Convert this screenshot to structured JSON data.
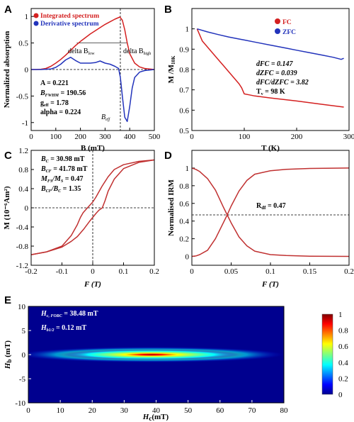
{
  "chart_data": [
    {
      "panel": "A",
      "type": "line",
      "xlabel": "B (mT)",
      "ylabel": "Normalized absorption",
      "xlim": [
        0,
        500
      ],
      "ylim": [
        -1.15,
        1.15
      ],
      "xticks": [
        0,
        100,
        200,
        300,
        400,
        500
      ],
      "yticks": [
        -1,
        -0.5,
        0,
        0.5,
        1
      ],
      "ytick_labels": [
        "-1",
        "-0.5",
        "0",
        "0.5",
        "1"
      ],
      "legend": [
        "Integrated spectrum",
        "Derivative spectrum"
      ],
      "legend_colors": [
        "#d42020",
        "#2233bb"
      ],
      "vline": {
        "x": 362,
        "label": "B_eff"
      },
      "hline": {
        "y": 0
      },
      "delta_low_label": "delta B_low",
      "delta_high_label": "delta B_high",
      "annotations": [
        "A = 0.221",
        "B_FWHM = 190.56",
        "g_eff = 1.78",
        "alpha = 0.224"
      ],
      "series": [
        {
          "name": "Integrated spectrum",
          "color": "#d42020",
          "x": [
            0,
            20,
            40,
            60,
            80,
            100,
            120,
            140,
            160,
            180,
            200,
            220,
            240,
            260,
            280,
            300,
            320,
            340,
            360,
            370,
            380,
            390,
            400,
            420,
            440,
            460,
            480,
            500
          ],
          "y": [
            0,
            0,
            0.005,
            0.02,
            0.06,
            0.12,
            0.19,
            0.27,
            0.36,
            0.45,
            0.53,
            0.6,
            0.67,
            0.73,
            0.79,
            0.85,
            0.9,
            0.95,
            0.99,
            0.93,
            0.75,
            0.5,
            0.3,
            0.12,
            0.05,
            0.02,
            0.01,
            0
          ]
        },
        {
          "name": "Derivative spectrum",
          "color": "#2233bb",
          "x": [
            0,
            40,
            80,
            100,
            120,
            140,
            160,
            180,
            200,
            220,
            240,
            260,
            280,
            300,
            320,
            340,
            355,
            362,
            370,
            380,
            390,
            400,
            410,
            420,
            440,
            460,
            480,
            500
          ],
          "y": [
            0,
            0,
            0.01,
            0.04,
            0.1,
            0.18,
            0.23,
            0.17,
            0.12,
            0.12,
            0.12,
            0.13,
            0.16,
            0.12,
            0.1,
            0.06,
            0.02,
            -0.15,
            -0.5,
            -0.9,
            -0.98,
            -0.7,
            -0.35,
            -0.15,
            -0.05,
            -0.02,
            -0.01,
            0
          ]
        }
      ]
    },
    {
      "panel": "B",
      "type": "line",
      "xlabel": "T (K)",
      "ylabel": "M /M_10K",
      "xlim": [
        0,
        300
      ],
      "ylim": [
        0.5,
        1.1
      ],
      "xticks": [
        0,
        100,
        200,
        300
      ],
      "yticks": [
        0.5,
        0.6,
        0.7,
        0.8,
        0.9,
        1
      ],
      "ytick_labels": [
        "0.5",
        "0.6",
        "0.7",
        "0.8",
        "0.9",
        "1"
      ],
      "legend": [
        "FC",
        "ZFC"
      ],
      "legend_colors": [
        "#d42020",
        "#2233bb"
      ],
      "annotations": [
        "dFC = 0.147",
        "dZFC = 0.039",
        "dFC/dZFC = 3.82",
        "T_v = 98 K"
      ],
      "series": [
        {
          "name": "FC",
          "color": "#d42020",
          "x": [
            10,
            15,
            20,
            30,
            40,
            50,
            60,
            70,
            80,
            90,
            95,
            100,
            110,
            120,
            150,
            200,
            250,
            290
          ],
          "y": [
            1,
            0.97,
            0.94,
            0.91,
            0.88,
            0.85,
            0.82,
            0.79,
            0.76,
            0.73,
            0.71,
            0.68,
            0.675,
            0.67,
            0.66,
            0.645,
            0.628,
            0.615
          ]
        },
        {
          "name": "ZFC",
          "color": "#2233bb",
          "x": [
            10,
            30,
            50,
            70,
            90,
            100,
            120,
            150,
            180,
            200,
            220,
            250,
            270,
            285,
            290
          ],
          "y": [
            1,
            0.985,
            0.972,
            0.96,
            0.95,
            0.945,
            0.935,
            0.92,
            0.905,
            0.895,
            0.885,
            0.87,
            0.86,
            0.85,
            0.855
          ]
        }
      ]
    },
    {
      "panel": "C",
      "type": "line",
      "xlabel": "F (T)",
      "ylabel": "M (10^-6 Am^2)",
      "xlim": [
        -0.2,
        0.2
      ],
      "ylim": [
        -1.2,
        1.2
      ],
      "xticks": [
        -0.2,
        -0.1,
        0,
        0.1,
        0.2
      ],
      "xtick_labels": [
        "-0.2",
        "-0.1",
        "0",
        "0.1",
        "0.2"
      ],
      "yticks": [
        -1.2,
        -0.8,
        -0.4,
        0,
        0.4,
        0.8,
        1.2
      ],
      "ytick_labels": [
        "-1.2",
        "-0.8",
        "-0.4",
        "0",
        "0.4",
        "0.8",
        "1.2"
      ],
      "annotations": [
        "B_C = 30.98 mT",
        "B_CF = 41.78 mT",
        "M_FS/M_S = 0.47",
        "B_CF/B_C = 1.35"
      ],
      "series": [
        {
          "name": "descending",
          "color": "#c03030",
          "x": [
            0.2,
            0.15,
            0.1,
            0.07,
            0.05,
            0.03,
            0.01,
            0,
            -0.01,
            -0.02,
            -0.031,
            -0.04,
            -0.05,
            -0.07,
            -0.1,
            -0.15,
            -0.2
          ],
          "y": [
            1,
            0.97,
            0.9,
            0.8,
            0.65,
            0.45,
            0.22,
            0.12,
            0.05,
            -0.02,
            -0.1,
            -0.2,
            -0.35,
            -0.58,
            -0.8,
            -0.92,
            -0.98
          ]
        },
        {
          "name": "ascending",
          "color": "#c03030",
          "x": [
            -0.2,
            -0.15,
            -0.1,
            -0.07,
            -0.05,
            -0.03,
            -0.01,
            0,
            0.01,
            0.02,
            0.031,
            0.04,
            0.05,
            0.07,
            0.1,
            0.15,
            0.2
          ],
          "y": [
            -0.98,
            -0.92,
            -0.82,
            -0.7,
            -0.6,
            -0.45,
            -0.28,
            -0.2,
            -0.12,
            -0.05,
            0,
            0.15,
            0.35,
            0.6,
            0.82,
            0.95,
            1
          ]
        }
      ]
    },
    {
      "panel": "D",
      "type": "line",
      "xlabel": "F (T)",
      "ylabel": "Normalised IRM",
      "xlim": [
        0,
        0.2
      ],
      "ylim": [
        -0.1,
        1.2
      ],
      "xticks": [
        0,
        0.05,
        0.1,
        0.15,
        0.2
      ],
      "xtick_labels": [
        "0",
        "0.05",
        "0.1",
        "0.15",
        "0.2"
      ],
      "yticks": [
        0,
        0.2,
        0.4,
        0.6,
        0.8,
        1
      ],
      "ytick_labels": [
        "0",
        "0.2",
        "0.4",
        "0.6",
        "0.8",
        "1"
      ],
      "hline": {
        "y": 0.47,
        "label": "R_df = 0.47"
      },
      "series": [
        {
          "name": "acquisition",
          "color": "#c03030",
          "x": [
            0,
            0.005,
            0.01,
            0.02,
            0.03,
            0.04,
            0.045,
            0.05,
            0.06,
            0.07,
            0.08,
            0.1,
            0.12,
            0.15,
            0.2
          ],
          "y": [
            0,
            0.005,
            0.02,
            0.07,
            0.2,
            0.38,
            0.47,
            0.57,
            0.74,
            0.86,
            0.93,
            0.97,
            0.985,
            0.995,
            1
          ]
        },
        {
          "name": "demagnetisation",
          "color": "#c03030",
          "x": [
            0,
            0.005,
            0.01,
            0.02,
            0.03,
            0.04,
            0.045,
            0.05,
            0.06,
            0.07,
            0.08,
            0.1,
            0.12,
            0.15,
            0.2
          ],
          "y": [
            1,
            0.985,
            0.96,
            0.88,
            0.75,
            0.56,
            0.47,
            0.38,
            0.22,
            0.12,
            0.06,
            0.02,
            0.01,
            0.003,
            0
          ]
        }
      ]
    },
    {
      "panel": "E",
      "type": "heatmap",
      "xlabel": "H_c (mT)",
      "ylabel": "H_b (mT)",
      "xlim": [
        0,
        80
      ],
      "ylim": [
        -10,
        10
      ],
      "xticks": [
        0,
        10,
        20,
        30,
        40,
        50,
        60,
        70,
        80
      ],
      "yticks": [
        -10,
        -5,
        0,
        5,
        10
      ],
      "colorbar_ticks": [
        0,
        0.2,
        0.4,
        0.6,
        0.8,
        1
      ],
      "colorbar_labels": [
        "0",
        "0.2",
        "0.4",
        "0.6",
        "0.8",
        "1"
      ],
      "annotations": [
        "H_c,FORC = 38.48 mT",
        "H_b1/2 = 0.12 mT"
      ],
      "peak": {
        "x": 38.48,
        "y": 0
      }
    }
  ],
  "labels": {
    "A": "A",
    "B": "B",
    "C": "C",
    "D": "D",
    "E": "E",
    "a_legend1": "Integrated spectrum",
    "a_legend2": "Derivative spectrum",
    "a_ann1": "A = 0.221",
    "a_ann2": "B",
    "a_ann2_sub": "FWHM",
    "a_ann2_val": " = 190.56",
    "a_ann3": "g",
    "a_ann3_sub": "eff",
    "a_ann3_val": " = 1.78",
    "a_ann4": "alpha = 0.224",
    "a_dlow": "delta B",
    "a_dlow_sub": "low",
    "a_dhigh": "delta B",
    "a_dhigh_sub": "high",
    "a_beff": "B",
    "a_beff_sub": "eff",
    "a_xlabel": "B (mT)",
    "a_ylabel": "Normalized absorption",
    "b_legend1": "FC",
    "b_legend2": "ZFC",
    "b_ann1": "dFC = 0.147",
    "b_ann2": "dZFC = 0.039",
    "b_ann3": "dFC/dZFC = 3.82",
    "b_ann4": "T",
    "b_ann4_sub": "v",
    "b_ann4_val": " = 98 K",
    "b_xlabel": "T (K)",
    "b_ylabel": "M /M",
    "b_ylabel_sub": "10K",
    "c_ann1": "B",
    "c_ann1_sub": "C",
    "c_ann1_val": " = 30.98 mT",
    "c_ann2": "B",
    "c_ann2_sub": "CF",
    "c_ann2_val": " = 41.78 mT",
    "c_ann3": "M",
    "c_ann3_sub": "FS",
    "c_ann3_mid": "/M",
    "c_ann3_sub2": "S",
    "c_ann3_val": " = 0.47",
    "c_ann4": "B",
    "c_ann4_sub": "CF",
    "c_ann4_mid": "/B",
    "c_ann4_sub2": "C",
    "c_ann4_val": " = 1.35",
    "c_xlabel": "F (T)",
    "c_ylabel": "M (10⁻⁶Am²)",
    "d_rdf": "R",
    "d_rdf_sub": "df",
    "d_rdf_val": " = 0.47",
    "d_xlabel": "F (T)",
    "d_ylabel": "Normalised IRM",
    "e_ann1": "H",
    "e_ann1_sub": "c, FORC",
    "e_ann1_val": " = 38.48 mT",
    "e_ann2": "H",
    "e_ann2_sub": "b1/2",
    "e_ann2_val": " = 0.12 mT",
    "e_xlabel": "H",
    "e_xlabel_sub": "c",
    "e_xlabel_val": "(mT)",
    "e_ylabel": "H",
    "e_ylabel_sub": "b",
    "e_ylabel_val": " (mT)"
  }
}
